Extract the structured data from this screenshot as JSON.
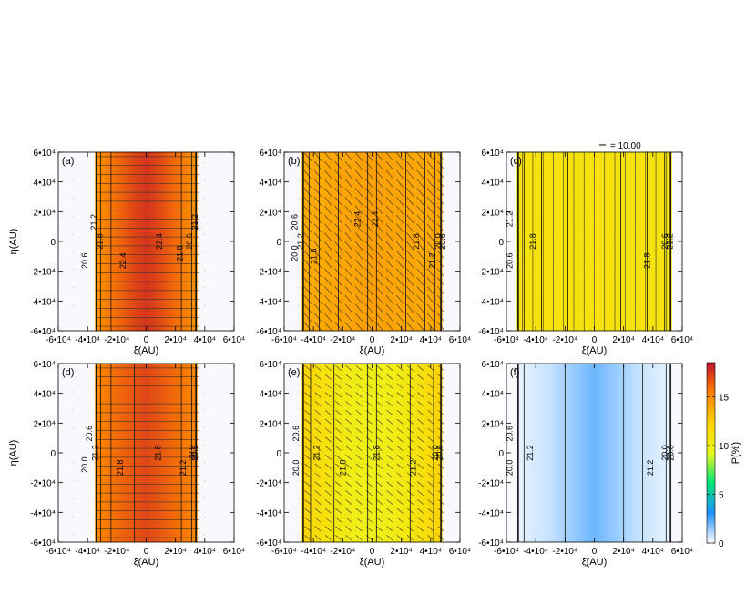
{
  "figure": {
    "vector_key_label": "= 10.00",
    "colorbar": {
      "label": "P(%)",
      "ticks": [
        "0",
        "5",
        "10",
        "15"
      ],
      "tick_values": [
        0,
        5,
        10,
        15
      ],
      "range": [
        0,
        18.5
      ],
      "colors": [
        "#ffffff",
        "#1e90ff",
        "#00e676",
        "#eaf81e",
        "#ffd200",
        "#ff8000",
        "#c0102a"
      ]
    }
  },
  "chart_data": [
    {
      "type": "heatmap",
      "panel_label": "(a)",
      "xlabel": "ξ(AU)",
      "ylabel": "η(AU)",
      "xlim": [
        -60000,
        60000
      ],
      "ylim": [
        -60000,
        60000
      ],
      "x_ticks": [
        "-6•10⁴",
        "-4•10⁴",
        "-2•10⁴",
        "0",
        "2•10⁴",
        "4•10⁴",
        "6•10⁴"
      ],
      "y_ticks": [
        "6•10⁴",
        "4•10⁴",
        "2•10⁴",
        "0",
        "-2•10⁴",
        "-4•10⁴",
        "-6•10⁴"
      ],
      "disk_extent": [
        -35000,
        35000
      ],
      "profile_x": [
        -35000,
        -20000,
        -8000,
        0,
        8000,
        20000,
        35000
      ],
      "profile_P": [
        14.5,
        16,
        17,
        17.5,
        17,
        16,
        14.5
      ],
      "contour_x": [
        -34000,
        -31000,
        -24000,
        24000,
        31000,
        34000
      ],
      "contour_labels": [
        {
          "x": -40000,
          "y": -13000,
          "text": "20.6"
        },
        {
          "x": -34000,
          "y": 13000,
          "text": "21.2"
        },
        {
          "x": -30000,
          "y": 0,
          "text": "21.8"
        },
        {
          "x": -14000,
          "y": -13000,
          "text": "22.4"
        },
        {
          "x": 11000,
          "y": 0,
          "text": "22.4"
        },
        {
          "x": 25000,
          "y": -8000,
          "text": "21.8"
        },
        {
          "x": 31500,
          "y": 0,
          "text": "20.6"
        },
        {
          "x": 35000,
          "y": 13000,
          "text": "21.2"
        }
      ],
      "vector_angle_deg": 0,
      "vector_length": 1.0
    },
    {
      "type": "heatmap",
      "panel_label": "(b)",
      "xlabel": "ξ(AU)",
      "ylabel": "",
      "xlim": [
        -60000,
        60000
      ],
      "ylim": [
        -60000,
        60000
      ],
      "x_ticks": [
        "-6•10⁴",
        "-4•10⁴",
        "-2•10⁴",
        "0",
        "2•10⁴",
        "4•10⁴",
        "6•10⁴"
      ],
      "y_ticks": [
        "6•10⁴",
        "4•10⁴",
        "2•10⁴",
        "0",
        "-2•10⁴",
        "-4•10⁴",
        "-6•10⁴"
      ],
      "disk_extent": [
        -48000,
        48000
      ],
      "profile_x": [
        -48000,
        -25000,
        0,
        25000,
        48000
      ],
      "profile_P": [
        13.8,
        14,
        14.2,
        14,
        13.8
      ],
      "contour_x": [
        -47000,
        -43000,
        -36000,
        -23000,
        -3000,
        3000,
        23000,
        36000,
        43000,
        47000
      ],
      "contour_labels": [
        {
          "x": -51000,
          "y": -8000,
          "text": "20.0"
        },
        {
          "x": -51000,
          "y": 13000,
          "text": "20.6"
        },
        {
          "x": -47000,
          "y": 0,
          "text": "21.2"
        },
        {
          "x": -38000,
          "y": -10000,
          "text": "21.8"
        },
        {
          "x": -8000,
          "y": 15000,
          "text": "22.4"
        },
        {
          "x": 4000,
          "y": 15000,
          "text": "22.4"
        },
        {
          "x": 32000,
          "y": 0,
          "text": "21.8"
        },
        {
          "x": 43000,
          "y": -13000,
          "text": "21.2"
        },
        {
          "x": 47000,
          "y": 0,
          "text": "20.0"
        },
        {
          "x": 50000,
          "y": 0,
          "text": "20.6"
        }
      ],
      "vector_angle_deg": 50,
      "vector_length": 1.0
    },
    {
      "type": "heatmap",
      "panel_label": "(c)",
      "xlabel": "ξ(AU)",
      "ylabel": "",
      "xlim": [
        -60000,
        60000
      ],
      "ylim": [
        -60000,
        60000
      ],
      "x_ticks": [
        "-6•10⁴",
        "-4•10⁴",
        "-2•10⁴",
        "0",
        "2•10⁴",
        "4•10⁴",
        "6•10⁴"
      ],
      "y_ticks": [
        "6•10⁴",
        "4•10⁴",
        "2•10⁴",
        "0",
        "-2•10⁴",
        "-4•10⁴",
        "-6•10⁴"
      ],
      "disk_extent": [
        -53000,
        53000
      ],
      "profile_x": [
        -53000,
        0,
        53000
      ],
      "profile_P": [
        11,
        11,
        11
      ],
      "contour_x": [
        -52000,
        -48000,
        -36000,
        -18000,
        18000,
        36000,
        48000,
        52000
      ],
      "contour_labels": [
        {
          "x": -56000,
          "y": -13000,
          "text": "20.6"
        },
        {
          "x": -56000,
          "y": 15000,
          "text": "21.2"
        },
        {
          "x": -40000,
          "y": 0,
          "text": "21.8"
        },
        {
          "x": 38000,
          "y": -13000,
          "text": "21.8"
        },
        {
          "x": 50000,
          "y": 0,
          "text": "20.6"
        },
        {
          "x": 53500,
          "y": 0,
          "text": "21.2"
        }
      ],
      "vector_angle_deg": 90,
      "vector_length": 0.85
    },
    {
      "type": "heatmap",
      "panel_label": "(d)",
      "xlabel": "ξ(AU)",
      "ylabel": "η(AU)",
      "xlim": [
        -60000,
        60000
      ],
      "ylim": [
        -60000,
        60000
      ],
      "x_ticks": [
        "-6•10⁴",
        "-4•10⁴",
        "-2•10⁴",
        "0",
        "2•10⁴",
        "4•10⁴",
        "6•10⁴"
      ],
      "y_ticks": [
        "6•10⁴",
        "4•10⁴",
        "2•10⁴",
        "0",
        "-2•10⁴",
        "-4•10⁴",
        "-6•10⁴"
      ],
      "disk_extent": [
        -35000,
        35000
      ],
      "profile_x": [
        -35000,
        -20000,
        0,
        20000,
        35000
      ],
      "profile_P": [
        15,
        16,
        17,
        16,
        15
      ],
      "contour_x": [
        -34000,
        -31000,
        -24000,
        -8000,
        8000,
        24000,
        31000,
        34000
      ],
      "contour_labels": [
        {
          "x": -40000,
          "y": -8000,
          "text": "20.0"
        },
        {
          "x": -37000,
          "y": 13000,
          "text": "20.6"
        },
        {
          "x": -33000,
          "y": 0,
          "text": "21.2"
        },
        {
          "x": -16000,
          "y": -10000,
          "text": "21.8"
        },
        {
          "x": 10000,
          "y": 0,
          "text": "21.8"
        },
        {
          "x": 27000,
          "y": -10000,
          "text": "21.2"
        },
        {
          "x": 33000,
          "y": 0,
          "text": "20.0"
        },
        {
          "x": 35000,
          "y": 0,
          "text": "20.6"
        }
      ],
      "vector_angle_deg": 0,
      "vector_length": 1.0
    },
    {
      "type": "heatmap",
      "panel_label": "(e)",
      "xlabel": "ξ(AU)",
      "ylabel": "",
      "xlim": [
        -60000,
        60000
      ],
      "ylim": [
        -60000,
        60000
      ],
      "x_ticks": [
        "-6•10⁴",
        "-4•10⁴",
        "-2•10⁴",
        "0",
        "2•10⁴",
        "4•10⁴",
        "6•10⁴"
      ],
      "y_ticks": [
        "6•10⁴",
        "4•10⁴",
        "2•10⁴",
        "0",
        "-2•10⁴",
        "-4•10⁴",
        "-6•10⁴"
      ],
      "disk_extent": [
        -48000,
        48000
      ],
      "profile_x": [
        -48000,
        -38000,
        -20000,
        0,
        20000,
        38000,
        48000
      ],
      "profile_P": [
        12.3,
        11.5,
        10.5,
        9.8,
        10.5,
        11.5,
        12.3
      ],
      "contour_x": [
        -47000,
        -42000,
        -26000,
        -3000,
        3000,
        26000,
        42000,
        47000
      ],
      "contour_labels": [
        {
          "x": -50000,
          "y": -10000,
          "text": "20.0"
        },
        {
          "x": -50000,
          "y": 13000,
          "text": "20.6"
        },
        {
          "x": -36000,
          "y": 0,
          "text": "21.2"
        },
        {
          "x": -18000,
          "y": -10000,
          "text": "21.8"
        },
        {
          "x": 5000,
          "y": 0,
          "text": "21.8"
        },
        {
          "x": 30000,
          "y": -10000,
          "text": "21.2"
        },
        {
          "x": 45000,
          "y": 0,
          "text": "20.0"
        },
        {
          "x": 48000,
          "y": 0,
          "text": "20.6"
        }
      ],
      "vector_angle_deg": 40,
      "vector_length": 0.7
    },
    {
      "type": "heatmap",
      "panel_label": "(f)",
      "xlabel": "ξ(AU)",
      "ylabel": "",
      "xlim": [
        -60000,
        60000
      ],
      "ylim": [
        -60000,
        60000
      ],
      "x_ticks": [
        "-6•10⁴",
        "-4•10⁴",
        "-2•10⁴",
        "0",
        "2•10⁴",
        "4•10⁴",
        "6•10⁴"
      ],
      "y_ticks": [
        "6•10⁴",
        "4•10⁴",
        "2•10⁴",
        "0",
        "-2•10⁴",
        "-4•10⁴",
        "-6•10⁴"
      ],
      "disk_extent": [
        -53000,
        53000
      ],
      "profile_x": [
        -53000,
        -30000,
        -10000,
        0,
        10000,
        30000,
        53000
      ],
      "profile_P": [
        0.3,
        0.8,
        1.6,
        2.0,
        1.6,
        0.8,
        0.3
      ],
      "contour_x": [
        -52000,
        -48000,
        -20000,
        20000,
        33000,
        49000,
        52000
      ],
      "contour_labels": [
        {
          "x": -56000,
          "y": -10000,
          "text": "20.0"
        },
        {
          "x": -56000,
          "y": 13000,
          "text": "20.6"
        },
        {
          "x": -42000,
          "y": 0,
          "text": "21.2"
        },
        {
          "x": 40000,
          "y": -10000,
          "text": "21.2"
        },
        {
          "x": 50000,
          "y": 0,
          "text": "20.0"
        },
        {
          "x": 54000,
          "y": 0,
          "text": "20.6"
        }
      ],
      "vector_angle_deg": 0,
      "vector_length": 0
    }
  ]
}
